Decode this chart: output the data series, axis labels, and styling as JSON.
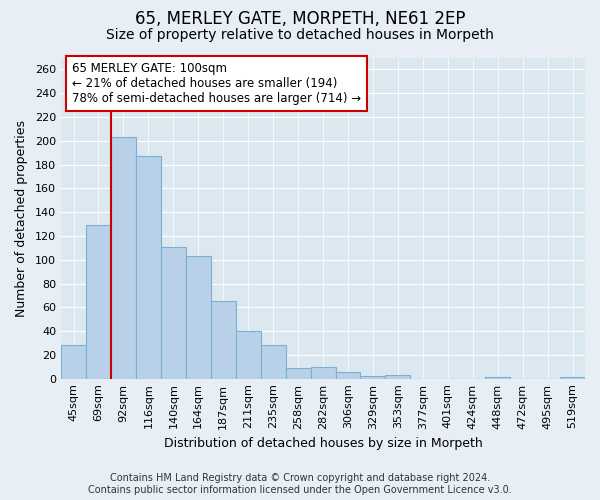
{
  "title": "65, MERLEY GATE, MORPETH, NE61 2EP",
  "subtitle": "Size of property relative to detached houses in Morpeth",
  "xlabel": "Distribution of detached houses by size in Morpeth",
  "ylabel": "Number of detached properties",
  "categories": [
    "45sqm",
    "69sqm",
    "92sqm",
    "116sqm",
    "140sqm",
    "164sqm",
    "187sqm",
    "211sqm",
    "235sqm",
    "258sqm",
    "282sqm",
    "306sqm",
    "329sqm",
    "353sqm",
    "377sqm",
    "401sqm",
    "424sqm",
    "448sqm",
    "472sqm",
    "495sqm",
    "519sqm"
  ],
  "values": [
    28,
    129,
    203,
    187,
    111,
    103,
    65,
    40,
    28,
    9,
    10,
    6,
    2,
    3,
    0,
    0,
    0,
    1,
    0,
    0,
    1
  ],
  "bar_color": "#b8d0e8",
  "bar_edge_color": "#7bafd4",
  "vline_color": "#cc0000",
  "vline_index": 2,
  "annotation_line1": "65 MERLEY GATE: 100sqm",
  "annotation_line2": "← 21% of detached houses are smaller (194)",
  "annotation_line3": "78% of semi-detached houses are larger (714) →",
  "annotation_box_facecolor": "#ffffff",
  "annotation_box_edgecolor": "#cc0000",
  "ylim": [
    0,
    270
  ],
  "yticks": [
    0,
    20,
    40,
    60,
    80,
    100,
    120,
    140,
    160,
    180,
    200,
    220,
    240,
    260
  ],
  "footer1": "Contains HM Land Registry data © Crown copyright and database right 2024.",
  "footer2": "Contains public sector information licensed under the Open Government Licence v3.0.",
  "bg_color": "#e8eef5",
  "plot_bg_color": "#dce8f0",
  "grid_color": "#ffffff",
  "title_fontsize": 12,
  "subtitle_fontsize": 10,
  "tick_fontsize": 8,
  "label_fontsize": 9,
  "footer_fontsize": 7
}
